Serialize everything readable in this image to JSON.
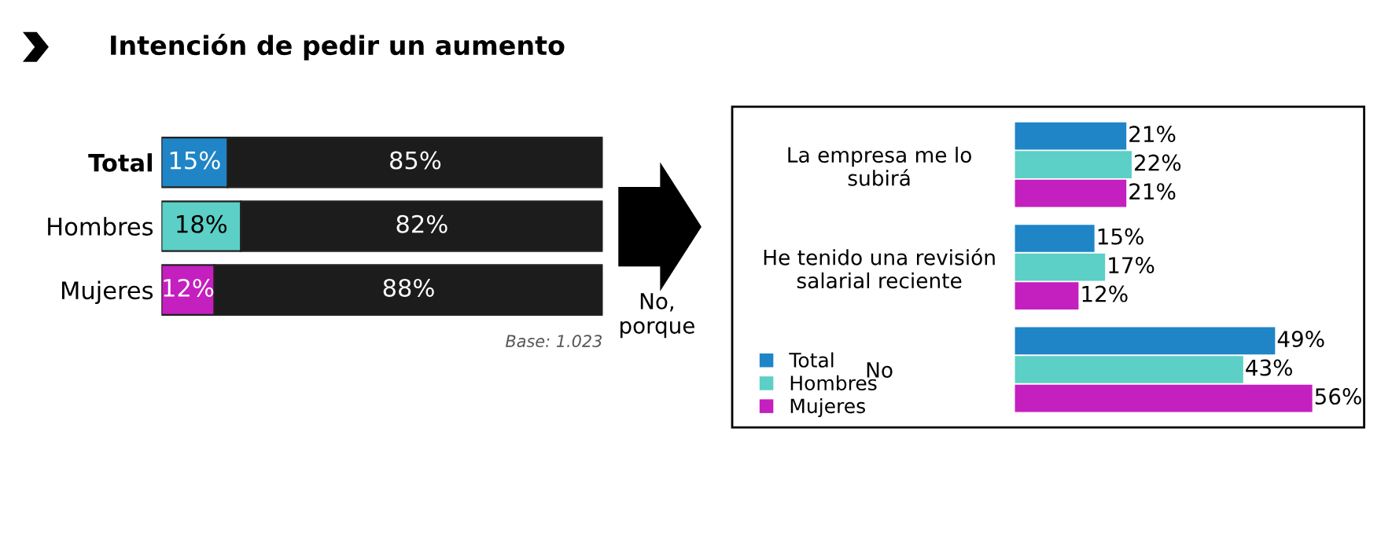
{
  "chart_data": [
    {
      "type": "bar",
      "title": "Intención de pedir un aumento",
      "orientation": "horizontal",
      "stacked": true,
      "categories": [
        "Total",
        "Hombres",
        "Mujeres"
      ],
      "series": [
        {
          "colors": [
            "#1f85c7",
            "#5ccfc6",
            "#c41fbf"
          ],
          "values": [
            15,
            18,
            12
          ],
          "value_labels": [
            "15%",
            "18%",
            "12%"
          ]
        },
        {
          "color": "#1c1c1c",
          "values": [
            85,
            82,
            88
          ],
          "value_labels": [
            "85%",
            "82%",
            "88%"
          ]
        }
      ],
      "tick_labels": "y",
      "annotations": [
        "Base: 1.023",
        "No,\nporque"
      ]
    },
    {
      "type": "bar",
      "orientation": "horizontal",
      "categories": [
        "La empresa me lo\nsubirá",
        "He tenido una revisión\nsalarial reciente",
        "No"
      ],
      "series": [
        {
          "name": "Total",
          "color": "#1f85c7",
          "values": [
            21,
            15,
            49
          ],
          "value_labels": [
            "21%",
            "15%",
            "49%"
          ]
        },
        {
          "name": "Hombres",
          "color": "#5ccfc6",
          "values": [
            22,
            17,
            43
          ],
          "value_labels": [
            "22%",
            "17%",
            "43%"
          ]
        },
        {
          "name": "Mujeres",
          "color": "#c41fbf",
          "values": [
            21,
            12,
            56
          ],
          "value_labels": [
            "21%",
            "12%",
            "56%"
          ]
        }
      ],
      "tick_labels": "y",
      "legend": "bottom left"
    }
  ]
}
